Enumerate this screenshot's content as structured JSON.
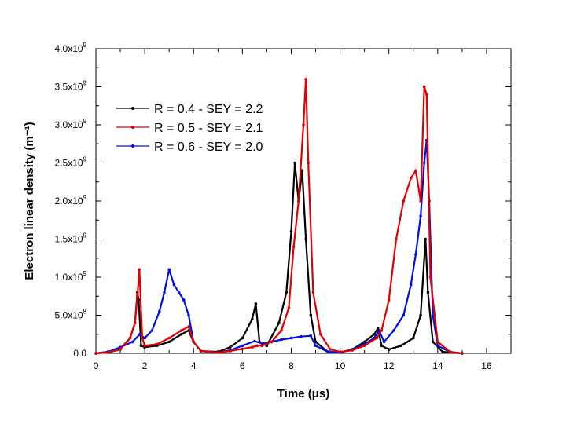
{
  "chart_data": {
    "type": "line",
    "xlabel": "Time (μs)",
    "ylabel": "Electron linear density (m⁻¹)",
    "xlim": [
      0,
      17
    ],
    "ylim": [
      0,
      4000000000.0
    ],
    "x_ticks": [
      0,
      2,
      4,
      6,
      8,
      10,
      12,
      14,
      16
    ],
    "y_ticks": [
      {
        "value": 0,
        "mantissa": "0.0",
        "exp": ""
      },
      {
        "value": 500000000.0,
        "mantissa": "5.0x10",
        "exp": "8"
      },
      {
        "value": 1000000000.0,
        "mantissa": "1.0x10",
        "exp": "9"
      },
      {
        "value": 1500000000.0,
        "mantissa": "1.5x10",
        "exp": "9"
      },
      {
        "value": 2000000000.0,
        "mantissa": "2.0x10",
        "exp": "9"
      },
      {
        "value": 2500000000.0,
        "mantissa": "2.5x10",
        "exp": "9"
      },
      {
        "value": 3000000000.0,
        "mantissa": "3.0x10",
        "exp": "9"
      },
      {
        "value": 3500000000.0,
        "mantissa": "3.5x10",
        "exp": "9"
      },
      {
        "value": 4000000000.0,
        "mantissa": "4.0x10",
        "exp": "9"
      }
    ],
    "legend_position": "top-left",
    "series": [
      {
        "name": "R = 0.4 - SEY = 2.2",
        "color": "#000000",
        "x": [
          0,
          0.5,
          1.0,
          1.4,
          1.6,
          1.7,
          1.75,
          1.85,
          2.0,
          2.5,
          3.0,
          3.5,
          3.8,
          4.0,
          4.3,
          5.0,
          5.5,
          6.0,
          6.4,
          6.55,
          6.7,
          7.0,
          7.5,
          7.8,
          8.0,
          8.15,
          8.3,
          8.45,
          8.6,
          8.8,
          9.0,
          9.5,
          10.0,
          10.5,
          11.0,
          11.4,
          11.55,
          11.7,
          12.0,
          12.5,
          13.0,
          13.3,
          13.5,
          13.6,
          13.8,
          14.2,
          15.0
        ],
        "y": [
          0,
          20000000.0,
          60000000.0,
          200000000.0,
          400000000.0,
          800000000.0,
          700000000.0,
          100000000.0,
          80000000.0,
          100000000.0,
          150000000.0,
          250000000.0,
          300000000.0,
          150000000.0,
          30000000.0,
          20000000.0,
          80000000.0,
          200000000.0,
          450000000.0,
          650000000.0,
          150000000.0,
          100000000.0,
          400000000.0,
          800000000.0,
          1600000000.0,
          2500000000.0,
          2000000000.0,
          2400000000.0,
          1500000000.0,
          500000000.0,
          150000000.0,
          20000000.0,
          10000000.0,
          50000000.0,
          150000000.0,
          250000000.0,
          330000000.0,
          100000000.0,
          50000000.0,
          100000000.0,
          200000000.0,
          500000000.0,
          1500000000.0,
          800000000.0,
          150000000.0,
          20000000.0,
          0
        ]
      },
      {
        "name": "R = 0.5 - SEY = 2.1",
        "color": "#e00000",
        "x": [
          0,
          0.5,
          1.0,
          1.4,
          1.6,
          1.7,
          1.78,
          1.9,
          2.0,
          2.5,
          3.0,
          3.5,
          3.8,
          4.0,
          4.3,
          5.0,
          5.5,
          6.0,
          6.4,
          6.6,
          6.8,
          7.2,
          7.6,
          7.9,
          8.1,
          8.3,
          8.5,
          8.6,
          8.7,
          8.9,
          9.2,
          9.6,
          10.0,
          10.5,
          11.0,
          11.5,
          11.7,
          12.0,
          12.3,
          12.6,
          12.9,
          13.1,
          13.3,
          13.45,
          13.55,
          13.7,
          14.0,
          14.5,
          15.0
        ],
        "y": [
          0,
          10000000.0,
          50000000.0,
          200000000.0,
          400000000.0,
          750000000.0,
          1100000000.0,
          200000000.0,
          100000000.0,
          120000000.0,
          200000000.0,
          300000000.0,
          350000000.0,
          150000000.0,
          30000000.0,
          10000000.0,
          30000000.0,
          60000000.0,
          80000000.0,
          100000000.0,
          100000000.0,
          150000000.0,
          300000000.0,
          600000000.0,
          1400000000.0,
          2000000000.0,
          3000000000.0,
          3600000000.0,
          2500000000.0,
          800000000.0,
          250000000.0,
          50000000.0,
          20000000.0,
          40000000.0,
          100000000.0,
          200000000.0,
          300000000.0,
          700000000.0,
          1500000000.0,
          2000000000.0,
          2300000000.0,
          2400000000.0,
          2000000000.0,
          3500000000.0,
          3400000000.0,
          1000000000.0,
          150000000.0,
          20000000.0,
          0
        ]
      },
      {
        "name": "R = 0.6 - SEY = 2.0",
        "color": "#0010e0",
        "x": [
          0,
          0.5,
          1.0,
          1.5,
          1.8,
          2.0,
          2.3,
          2.6,
          2.8,
          3.0,
          3.2,
          3.4,
          3.6,
          3.8,
          4.0,
          4.3,
          5.0,
          5.5,
          6.0,
          6.5,
          6.8,
          7.2,
          7.6,
          8.0,
          8.4,
          8.8,
          9.0,
          9.5,
          10.0,
          10.5,
          11.0,
          11.4,
          11.6,
          11.8,
          12.2,
          12.6,
          12.9,
          13.1,
          13.3,
          13.45,
          13.55,
          13.65,
          13.8,
          14.0,
          14.5,
          15.0
        ],
        "y": [
          0,
          20000000.0,
          80000000.0,
          150000000.0,
          250000000.0,
          200000000.0,
          300000000.0,
          550000000.0,
          800000000.0,
          1100000000.0,
          900000000.0,
          800000000.0,
          700000000.0,
          500000000.0,
          150000000.0,
          30000000.0,
          10000000.0,
          40000000.0,
          100000000.0,
          160000000.0,
          130000000.0,
          150000000.0,
          180000000.0,
          200000000.0,
          220000000.0,
          230000000.0,
          100000000.0,
          20000000.0,
          10000000.0,
          50000000.0,
          120000000.0,
          200000000.0,
          300000000.0,
          150000000.0,
          300000000.0,
          500000000.0,
          900000000.0,
          1300000000.0,
          1800000000.0,
          2500000000.0,
          2800000000.0,
          2000000000.0,
          500000000.0,
          100000000.0,
          20000000.0,
          0
        ]
      }
    ]
  }
}
